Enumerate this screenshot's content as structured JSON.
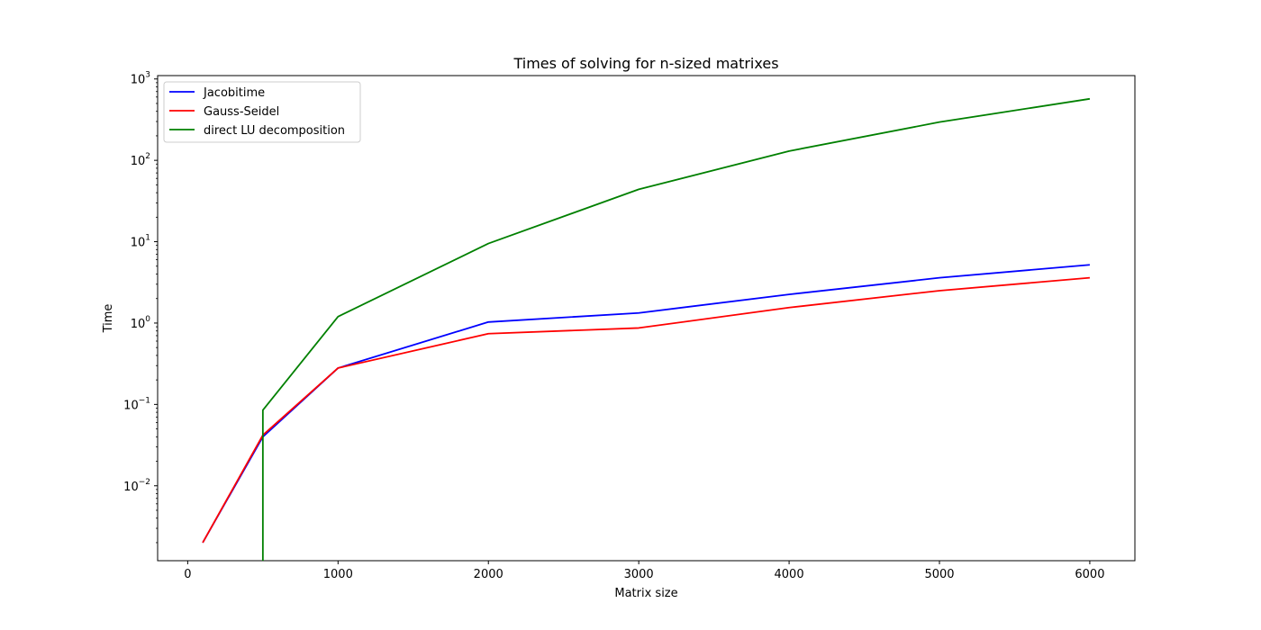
{
  "chart_data": {
    "type": "line",
    "title": "Times of solving for n-sized matrixes",
    "xlabel": "Matrix size",
    "ylabel": "Time",
    "yscale": "log",
    "xlim": [
      -200,
      6300
    ],
    "ylim": [
      0.0012,
      1100
    ],
    "x_ticks": [
      0,
      1000,
      2000,
      3000,
      4000,
      5000,
      6000
    ],
    "y_ticks": [
      {
        "value": 0.01,
        "base": "10",
        "exp": "−2"
      },
      {
        "value": 0.1,
        "base": "10",
        "exp": "−1"
      },
      {
        "value": 1,
        "base": "10",
        "exp": "0"
      },
      {
        "value": 10,
        "base": "10",
        "exp": "1"
      },
      {
        "value": 100,
        "base": "10",
        "exp": "2"
      },
      {
        "value": 1000,
        "base": "10",
        "exp": "3"
      }
    ],
    "legend_position": "top-left",
    "grid": false,
    "series": [
      {
        "name": "Jacobitime",
        "color": "#0000ff",
        "x": [
          100,
          500,
          1000,
          2000,
          3000,
          4000,
          5000,
          6000
        ],
        "y": [
          0.002,
          0.04,
          0.28,
          1.03,
          1.33,
          2.25,
          3.6,
          5.2
        ]
      },
      {
        "name": "Gauss-Seidel",
        "color": "#ff0000",
        "x": [
          100,
          500,
          1000,
          2000,
          3000,
          4000,
          5000,
          6000
        ],
        "y": [
          0.002,
          0.042,
          0.28,
          0.74,
          0.87,
          1.55,
          2.5,
          3.6
        ]
      },
      {
        "name": "direct LU decomposition",
        "color": "#008000",
        "x": [
          500,
          500,
          1000,
          2000,
          3000,
          4000,
          5000,
          6000
        ],
        "y": [
          0.0012,
          0.085,
          1.2,
          9.5,
          44,
          130,
          295,
          570
        ]
      }
    ]
  }
}
